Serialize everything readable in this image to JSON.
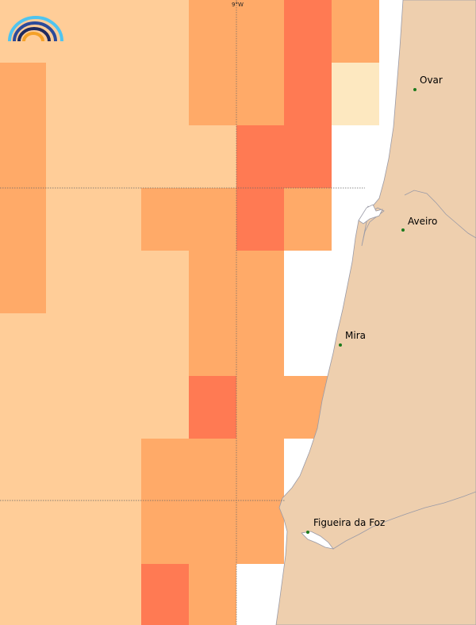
{
  "colors": {
    "water": "#ffffff",
    "land": "#eecfae",
    "coast": "#9a9aa6",
    "grid": "#666666",
    "city_dot": "#1c7a1c",
    "levels": [
      "#fde8c0",
      "#ffcd98",
      "#ffaa68",
      "#ff7a53"
    ]
  },
  "grid": {
    "longitude_label": "9°W"
  },
  "cities": [
    {
      "name": "Ovar"
    },
    {
      "name": "Aveiro"
    },
    {
      "name": "Mira"
    },
    {
      "name": "Figueira da Foz"
    }
  ],
  "icons": {
    "logo": "rainbow-logo-icon"
  }
}
